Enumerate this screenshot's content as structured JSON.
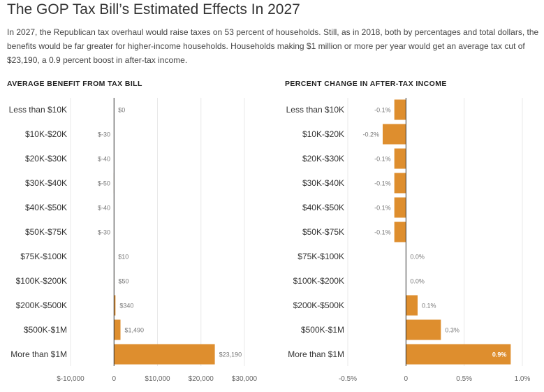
{
  "header": {
    "title": "The GOP Tax Bill’s Estimated Effects In 2027",
    "description": "In 2027, the Republican tax overhaul would raise taxes on 53 percent of households. Still, as in 2018, both by percentages and total dollars, the benefits would be far greater for higher-income households. Households making $1 million or more per year would get an average tax cut of $23,190, a 0.9 percent boost in after-tax income."
  },
  "colors": {
    "bar": "#de8e2e",
    "grid": "#e8e8e8",
    "axis": "#333333"
  },
  "chart_data": [
    {
      "type": "bar",
      "orientation": "horizontal",
      "title": "AVERAGE BENEFIT FROM TAX BILL",
      "categories": [
        "Less than $10K",
        "$10K-$20K",
        "$20K-$30K",
        "$30K-$40K",
        "$40K-$50K",
        "$50K-$75K",
        "$75K-$100K",
        "$100K-$200K",
        "$200K-$500K",
        "$500K-$1M",
        "More than $1M"
      ],
      "values": [
        0,
        -30,
        -40,
        -50,
        -40,
        -30,
        10,
        50,
        340,
        1490,
        23190
      ],
      "value_labels": [
        "$0",
        "$-30",
        "$-40",
        "$-50",
        "$-40",
        "$-30",
        "$10",
        "$50",
        "$340",
        "$1,490",
        "$23,190"
      ],
      "xlim": [
        -10000,
        30000
      ],
      "ticks": [
        -10000,
        0,
        10000,
        20000,
        30000
      ],
      "tick_labels": [
        "$-10,000",
        "0",
        "$10,000",
        "$20,000",
        "$30,000"
      ],
      "grid": true
    },
    {
      "type": "bar",
      "orientation": "horizontal",
      "title": "PERCENT CHANGE IN AFTER-TAX INCOME",
      "categories": [
        "Less than $10K",
        "$10K-$20K",
        "$20K-$30K",
        "$30K-$40K",
        "$40K-$50K",
        "$50K-$75K",
        "$75K-$100K",
        "$100K-$200K",
        "$200K-$500K",
        "$500K-$1M",
        "More than $1M"
      ],
      "values": [
        -0.1,
        -0.2,
        -0.1,
        -0.1,
        -0.1,
        -0.1,
        0.0,
        0.0,
        0.1,
        0.3,
        0.9
      ],
      "value_labels": [
        "-0.1%",
        "-0.2%",
        "-0.1%",
        "-0.1%",
        "-0.1%",
        "-0.1%",
        "0.0%",
        "0.0%",
        "0.1%",
        "0.3%",
        "0.9%"
      ],
      "xlim": [
        -0.5,
        1.0
      ],
      "ticks": [
        -0.5,
        0,
        0.5,
        1.0
      ],
      "tick_labels": [
        "-0.5%",
        "0",
        "0.5%",
        "1.0%"
      ],
      "grid": true
    }
  ]
}
